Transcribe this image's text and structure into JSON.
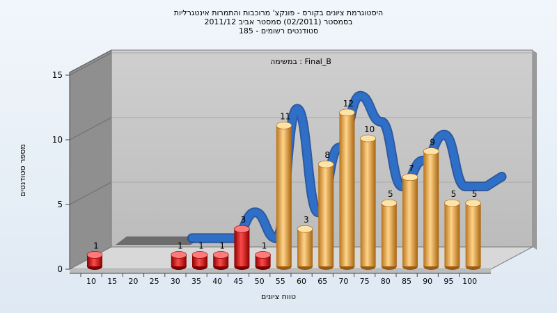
{
  "chart_data": {
    "type": "bar",
    "title_lines": [
      "היסטוגרמת ציונים בקורס - פונקצ' מרוכבות והתמרות אינטגרליות",
      "בסמסטר  (02/2011)  סמסטר אביב 2011/12",
      "סטודנטים רשומים - 185"
    ],
    "annotation": "במשימה : Final_B",
    "xlabel": "טווח ציונים",
    "ylabel": "מספר סטודנטים",
    "y_ticks": [
      0,
      5,
      10,
      15
    ],
    "ylim": [
      0,
      15
    ],
    "categories": [
      "10",
      "15",
      "20",
      "25",
      "30",
      "35",
      "40",
      "45",
      "50",
      "55",
      "60",
      "65",
      "70",
      "75",
      "80",
      "85",
      "90",
      "95",
      "100"
    ],
    "values": [
      1,
      0,
      0,
      0,
      1,
      1,
      1,
      3,
      1,
      11,
      3,
      8,
      12,
      10,
      5,
      7,
      9,
      5,
      5
    ],
    "colors": {
      "low": "#d01010",
      "high": "#e8a43a",
      "curve": "#2f6fc8",
      "back_wall": "#c4c4c4",
      "side_wall": "#8c8c8c"
    }
  }
}
